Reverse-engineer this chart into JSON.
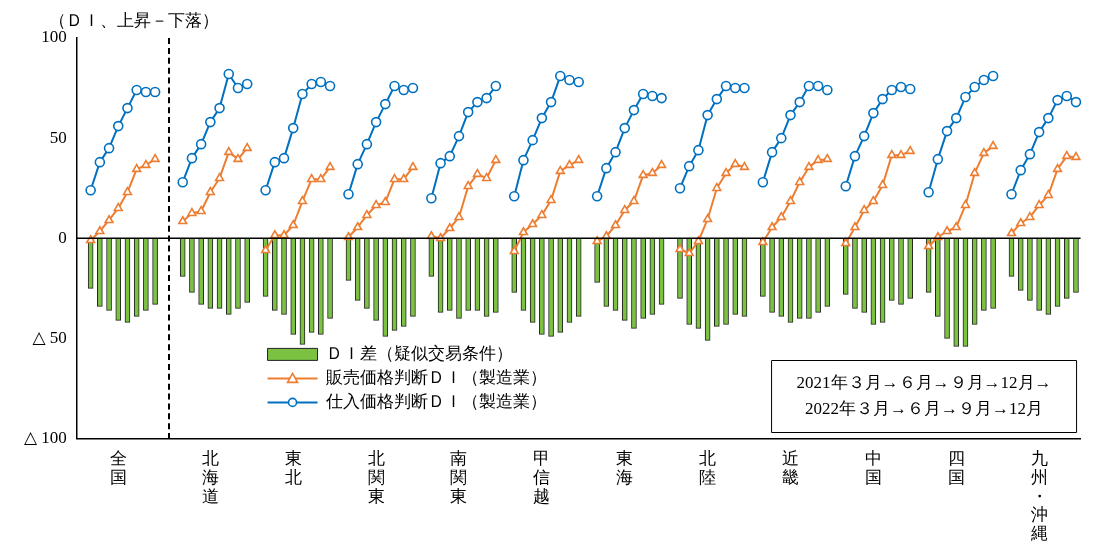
{
  "chart_data": {
    "type": "bar",
    "ylabel": "（ＤＩ、上昇－下落）",
    "categories": [
      null,
      null,
      null,
      null,
      "全国",
      null,
      null,
      null,
      null,
      null,
      null,
      null,
      null,
      null,
      "北海道",
      null,
      null,
      null,
      null,
      null,
      null,
      null,
      null,
      "東北",
      null,
      null,
      null,
      null,
      null,
      null,
      null,
      null,
      "北関東",
      null,
      null,
      null,
      null,
      null,
      null,
      null,
      null,
      "南関東",
      null,
      null,
      null,
      null,
      null,
      null,
      null,
      null,
      "甲信越",
      null,
      null,
      null,
      null,
      null,
      null,
      null,
      null,
      "東海",
      null,
      null,
      null,
      null,
      null,
      null,
      null,
      null,
      "北陸",
      null,
      null,
      null,
      null,
      null,
      null,
      null,
      null,
      "近畿",
      null,
      null,
      null,
      null,
      null,
      null,
      null,
      null,
      "中国",
      null,
      null,
      null,
      null,
      null,
      null,
      null,
      null,
      "四国",
      null,
      null,
      null,
      null,
      null,
      null,
      null,
      null,
      "九州・沖縄",
      null,
      null,
      null,
      null
    ],
    "ylim": [
      -100,
      100
    ],
    "yticks": [
      100,
      50,
      0,
      {
        "value": -50,
        "label": "△ 50"
      },
      {
        "value": -100,
        "label": "△ 100"
      }
    ],
    "series": [
      {
        "name": "ＤＩ差（疑似交易条件）",
        "color": "#7cc242",
        "values": [
          null,
          -25,
          -34,
          -36,
          -41,
          -42,
          -39,
          -36,
          -33,
          null,
          null,
          -19,
          -27,
          -33,
          -35,
          -35,
          -38,
          -35,
          -32,
          null,
          -29,
          -36,
          -38,
          -48,
          -53,
          -47,
          -48,
          -40,
          null,
          -21,
          -31,
          -35,
          -41,
          -49,
          -46,
          -44,
          -39,
          null,
          -19,
          -37,
          -36,
          -40,
          -36,
          -36,
          -39,
          -37,
          null,
          -27,
          -36,
          -42,
          -48,
          -49,
          -47,
          -42,
          -39,
          null,
          -22,
          -34,
          -36,
          -41,
          -45,
          -40,
          -38,
          -33,
          null,
          -30,
          -43,
          -45,
          -51,
          -44,
          -43,
          -38,
          -39,
          null,
          -29,
          -37,
          -39,
          -42,
          -40,
          -40,
          -37,
          -34,
          null,
          -28,
          -35,
          -37,
          -43,
          -42,
          -31,
          -33,
          -30,
          null,
          -27,
          -39,
          -50,
          -54,
          -54,
          -43,
          -36,
          -35,
          null,
          -19,
          -26,
          -31,
          -36,
          -38,
          -34,
          -30,
          -27
        ]
      },
      {
        "name": "販売価格判断ＤＩ（製造業）",
        "type": "line",
        "marker": "triangle",
        "color": "#ed7d31",
        "values": [
          null,
          -1,
          3.5,
          9,
          15,
          23,
          34.5,
          36.5,
          39.5,
          null,
          null,
          8.5,
          12.5,
          13.5,
          23,
          30,
          43,
          39.5,
          45,
          null,
          -6,
          1.5,
          1.5,
          6.5,
          18.5,
          29.5,
          29.5,
          35.5,
          null,
          0.5,
          5.5,
          11.5,
          16.5,
          18,
          29.5,
          29.5,
          35.5,
          null,
          1,
          0,
          5,
          10.5,
          26,
          32,
          30,
          39,
          null,
          -6.5,
          3,
          7,
          11.5,
          19,
          33.5,
          36.5,
          39,
          null,
          -1.5,
          1,
          6.5,
          14,
          18.5,
          31.5,
          32.5,
          36.5,
          null,
          -5.5,
          -7.5,
          -1.5,
          9.5,
          25,
          32.5,
          37,
          35.5,
          null,
          -2,
          5.5,
          10.5,
          18.5,
          28,
          35.5,
          39,
          39.5,
          null,
          -2.5,
          5.5,
          14,
          18.5,
          26.5,
          41.5,
          41.5,
          43.5,
          null,
          -4,
          0.5,
          3.5,
          5.5,
          16.5,
          32.5,
          42.5,
          46,
          null,
          2.5,
          7.5,
          10.5,
          16.5,
          21.5,
          34.5,
          41,
          40.5
        ]
      },
      {
        "name": "仕入価格判断ＤＩ（製造業）",
        "type": "line",
        "marker": "circle",
        "color": "#0070c0",
        "values": [
          null,
          24,
          38,
          45,
          56,
          65,
          74,
          73,
          73,
          null,
          null,
          28,
          40,
          47,
          58,
          65,
          82,
          75,
          77,
          null,
          24,
          38,
          40,
          55,
          72,
          77,
          78,
          76,
          null,
          22,
          37,
          47,
          58,
          67,
          76,
          74,
          75,
          null,
          20,
          37.5,
          41,
          51,
          63,
          68,
          70,
          76,
          null,
          21,
          39,
          49,
          60,
          68,
          81,
          79,
          78,
          null,
          21,
          35,
          43,
          55,
          64,
          72,
          71,
          70,
          null,
          25,
          36,
          44,
          61.5,
          69.5,
          76,
          75,
          75,
          null,
          28,
          43,
          50,
          61.5,
          68,
          76,
          76,
          74,
          null,
          26,
          41,
          51,
          62.5,
          69.5,
          74,
          75.5,
          74.5,
          null,
          23,
          39.5,
          53.5,
          60,
          70.5,
          75.5,
          79,
          81,
          null,
          22,
          34,
          42,
          53,
          60,
          69,
          71,
          68
        ]
      }
    ],
    "ref_lines": [
      {
        "axis": "y",
        "value": 0,
        "color": "#000000",
        "line_style": "solid"
      }
    ],
    "legend": "bottom",
    "annotations": [
      "2021年３月→６月→９月→12月→\n2022年３月→６月→９月→12月"
    ]
  }
}
